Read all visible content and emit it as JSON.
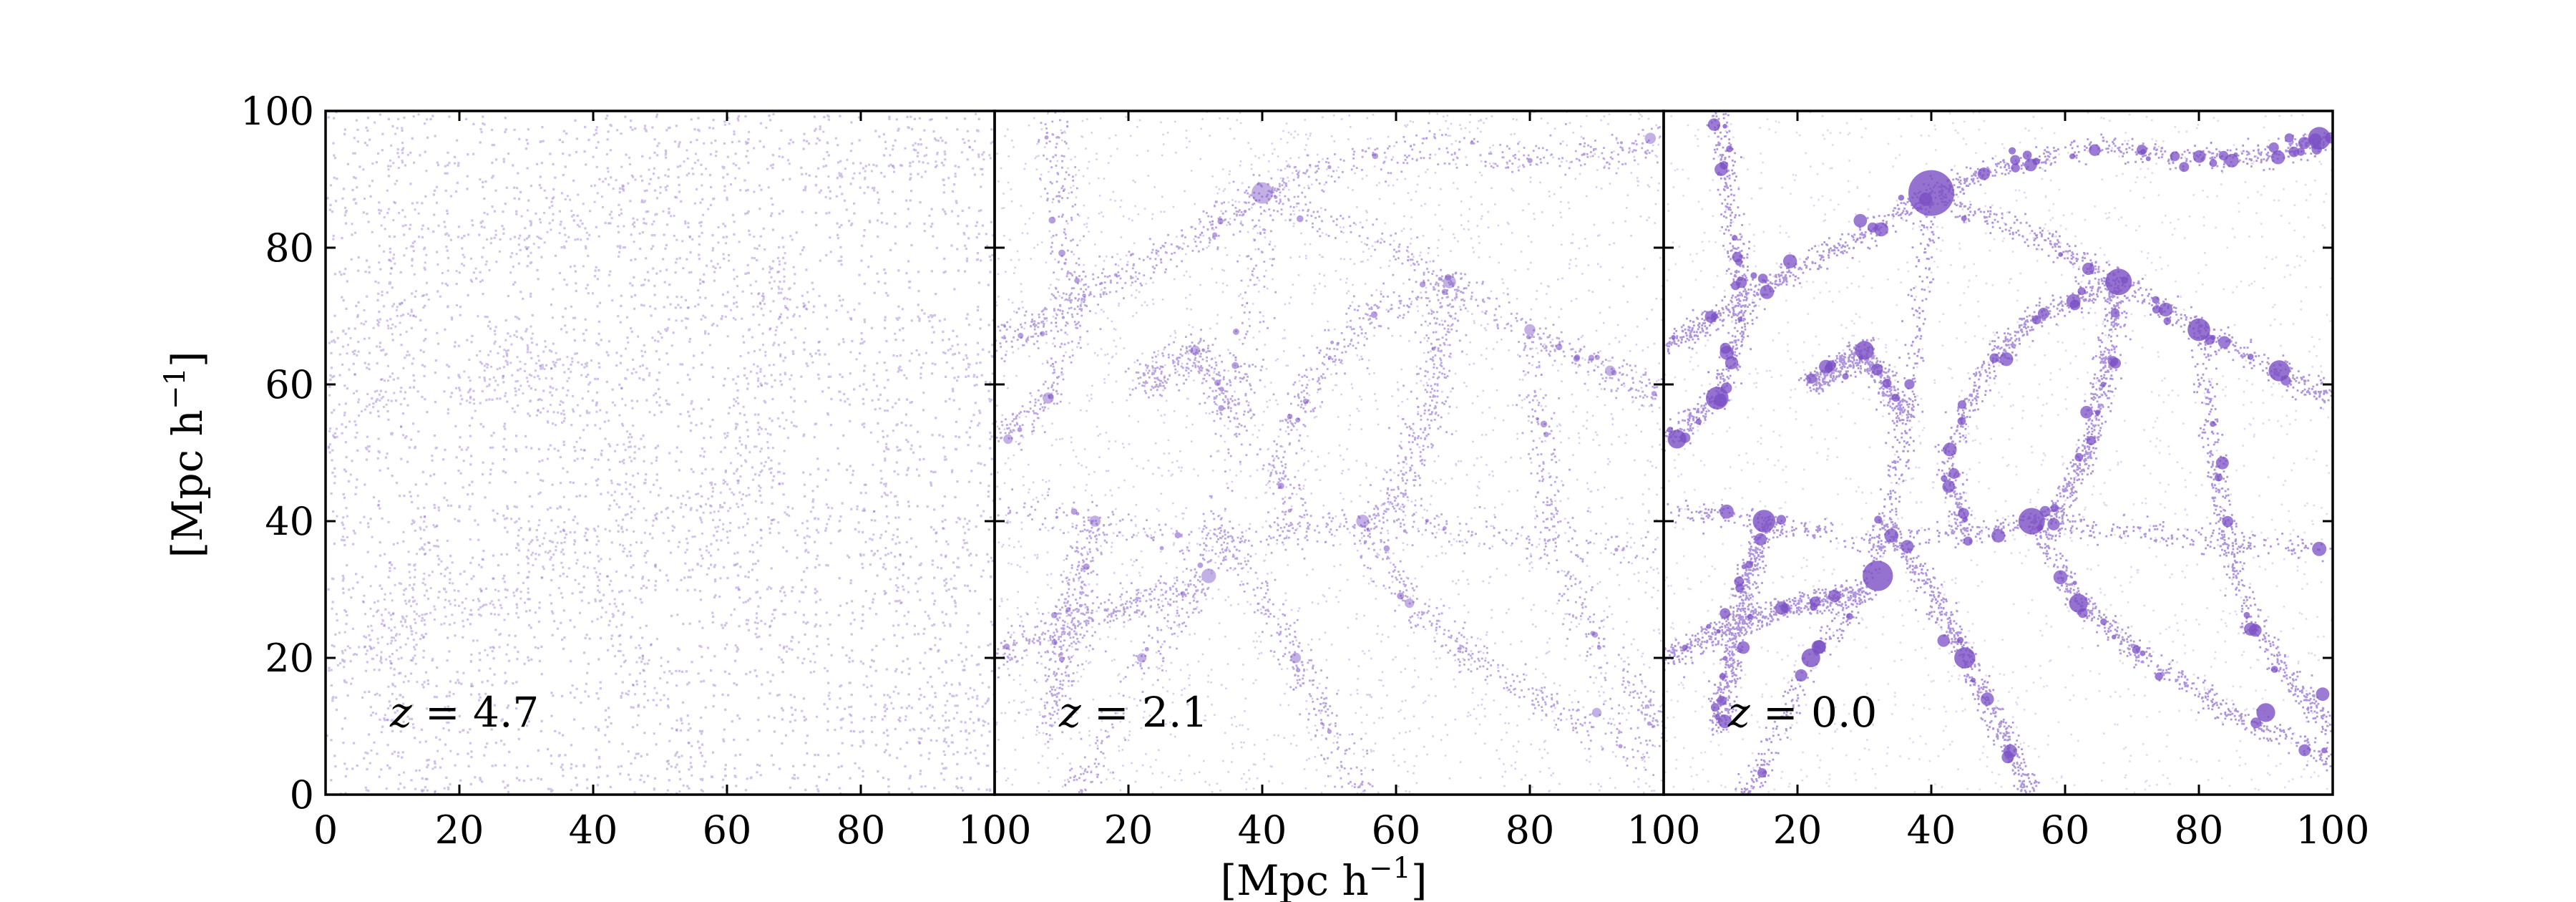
{
  "chart_data": {
    "type": "scatter",
    "description_free": true,
    "shared_y_axis": true,
    "xlabel": "[Mpc h",
    "xlabel_sup": "−1",
    "xlabel_close": "]",
    "ylabel": "[Mpc h",
    "ylabel_sup": "−1",
    "ylabel_close": "]",
    "xlim": [
      0,
      100
    ],
    "ylim": [
      0,
      100
    ],
    "xticks": [
      0,
      20,
      40,
      60,
      80,
      100
    ],
    "yticks": [
      0,
      20,
      40,
      60,
      80,
      100
    ],
    "grid": false,
    "point_color": "#7a4fc4",
    "panels": [
      {
        "label_var": "z",
        "label_eq": " = ",
        "label_value": "4.7",
        "redshift": 4.7
      },
      {
        "label_var": "z",
        "label_eq": " = ",
        "label_value": "2.1",
        "redshift": 2.1
      },
      {
        "label_var": "z",
        "label_eq": " = ",
        "label_value": "0.0",
        "redshift": 0.0
      }
    ]
  }
}
